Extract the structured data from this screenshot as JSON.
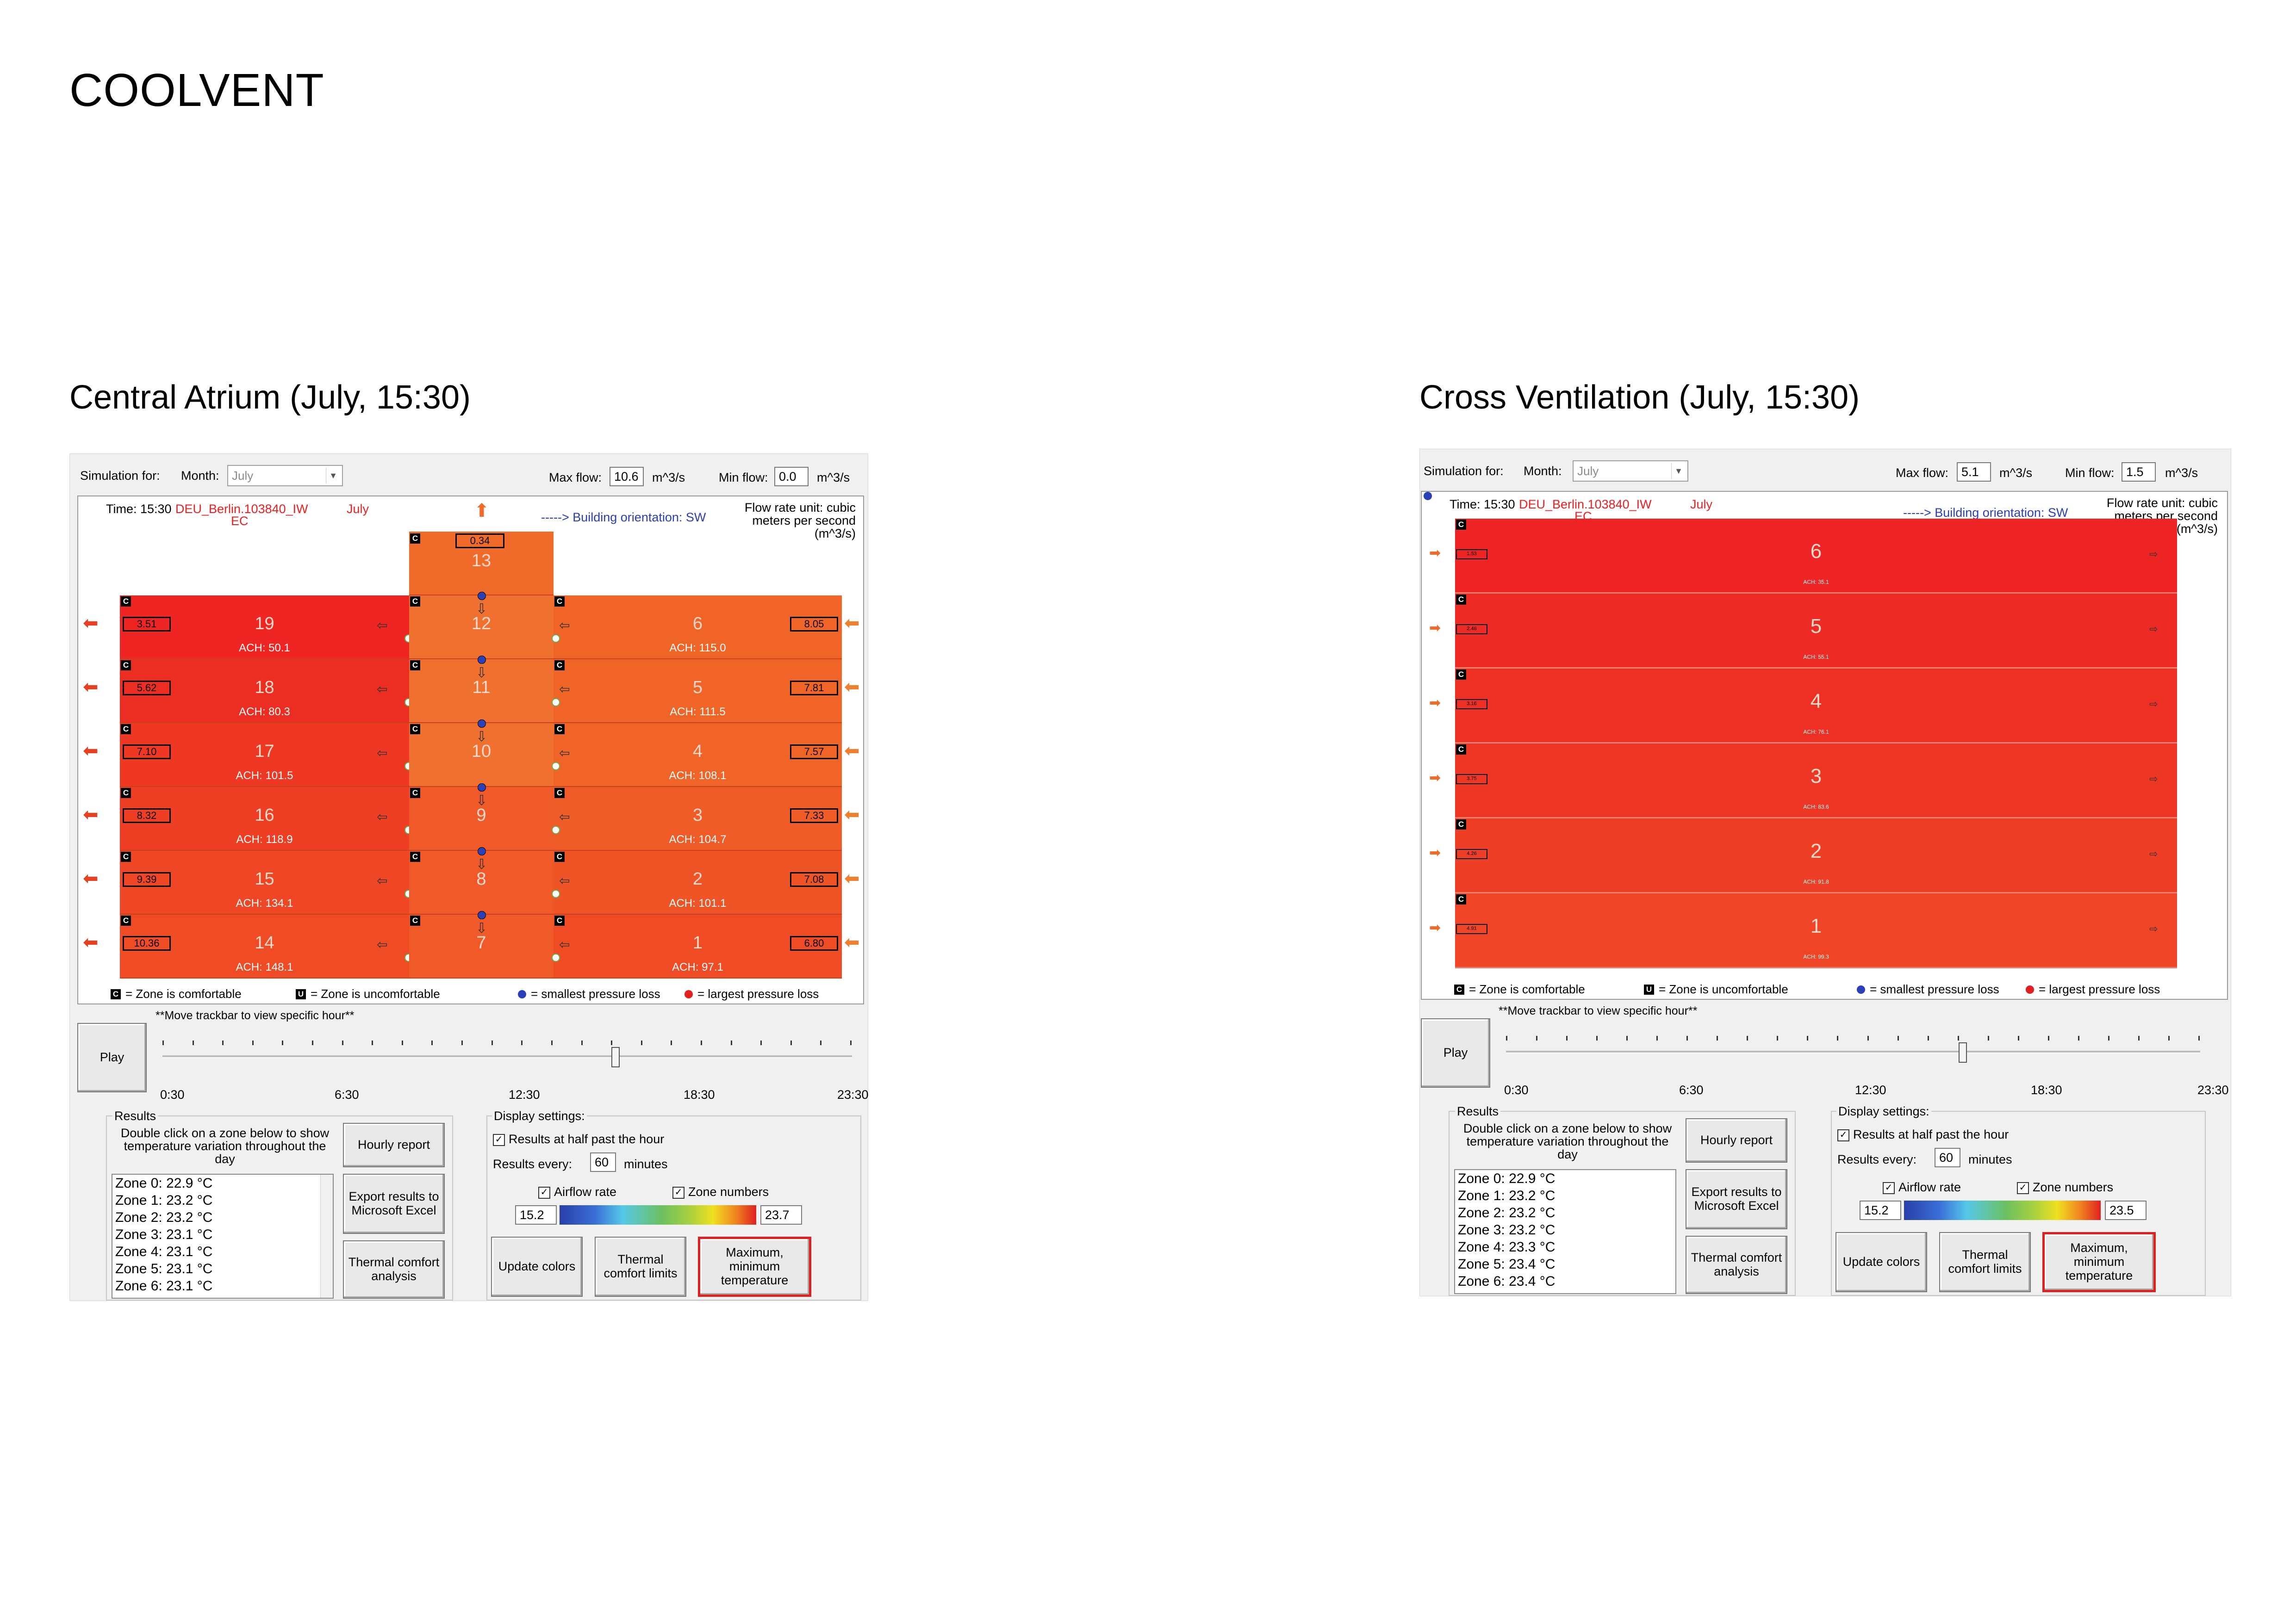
{
  "page": {
    "title": "COOLVENT"
  },
  "common": {
    "simulation_for": "Simulation for:",
    "month_label": "Month:",
    "month_value": "July",
    "max_flow_label": "Max flow:",
    "min_flow_label": "Min flow:",
    "flow_unit": "m^3/s",
    "time_label": "Time: 15:30",
    "location": "DEU_Berlin.103840_IW",
    "location_suffix": "EC",
    "month_display": "July",
    "orientation": "-----> Building orientation: SW",
    "flow_unit_note": "Flow rate unit: cubic meters per second (m^3/s)",
    "legend_c": "= Zone is comfortable",
    "legend_u": "= Zone is uncomfortable",
    "legend_small": "= smallest pressure loss",
    "legend_large": "= largest pressure loss",
    "trackbar_hint": "**Move trackbar to view specific hour**",
    "play": "Play",
    "time_ticks": [
      "0:30",
      "6:30",
      "12:30",
      "18:30",
      "23:30"
    ],
    "results_group": "Results",
    "results_hint": "Double click on a zone below to show temperature variation throughout the day",
    "hourly_report": "Hourly report",
    "export_excel": "Export results to Microsoft Excel",
    "thermal_comfort_analysis": "Thermal comfort analysis",
    "display_settings": "Display settings:",
    "half_past": "Results at half past the hour",
    "results_every": "Results every:",
    "results_every_value": "60",
    "minutes": "minutes",
    "airflow_rate": "Airflow rate",
    "zone_numbers": "Zone numbers",
    "update_colors": "Update colors",
    "thermal_comfort_limits": "Thermal comfort limits",
    "max_min_temp": "Maximum, minimum temperature",
    "c_mark": "C",
    "u_mark": "U"
  },
  "colors": {
    "zone_red": "#ee2222",
    "zone_orange": "#ef5a26",
    "atrium": "#f06a2a",
    "accent_red": "#e02020",
    "accent_blue": "#2a3fb8"
  },
  "left": {
    "title": "Central Atrium (July, 15:30)",
    "max_flow": "10.6",
    "min_flow": "0.0",
    "atrium_top": {
      "num": "13",
      "flow": "0.34"
    },
    "atrium": [
      "12",
      "11",
      "10",
      "9",
      "8",
      "7"
    ],
    "west": [
      {
        "num": "19",
        "ach": "ACH: 50.1",
        "flow": "3.51"
      },
      {
        "num": "18",
        "ach": "ACH: 80.3",
        "flow": "5.62"
      },
      {
        "num": "17",
        "ach": "ACH: 101.5",
        "flow": "7.10"
      },
      {
        "num": "16",
        "ach": "ACH: 118.9",
        "flow": "8.32"
      },
      {
        "num": "15",
        "ach": "ACH: 134.1",
        "flow": "9.39"
      },
      {
        "num": "14",
        "ach": "ACH: 148.1",
        "flow": "10.36"
      }
    ],
    "east": [
      {
        "num": "6",
        "ach": "ACH: 115.0",
        "flow": "8.05"
      },
      {
        "num": "5",
        "ach": "ACH: 111.5",
        "flow": "7.81"
      },
      {
        "num": "4",
        "ach": "ACH: 108.1",
        "flow": "7.57"
      },
      {
        "num": "3",
        "ach": "ACH: 104.7",
        "flow": "7.33"
      },
      {
        "num": "2",
        "ach": "ACH: 101.1",
        "flow": "7.08"
      },
      {
        "num": "1",
        "ach": "ACH: 97.1",
        "flow": "6.80"
      }
    ],
    "results": [
      "Zone 0: 22.9 °C",
      "Zone 1: 23.2 °C",
      "Zone 2: 23.2 °C",
      "Zone 3: 23.1 °C",
      "Zone 4: 23.1 °C",
      "Zone 5: 23.1 °C",
      "Zone 6: 23.1 °C"
    ],
    "scale_min": "15.2",
    "scale_max": "23.7"
  },
  "right": {
    "title": "Cross Ventilation (July, 15:30)",
    "max_flow": "5.1",
    "min_flow": "1.5",
    "zones": [
      {
        "num": "6",
        "ach": "ACH: 35.1",
        "flow": "1.53"
      },
      {
        "num": "5",
        "ach": "ACH: 55.1",
        "flow": "2.46"
      },
      {
        "num": "4",
        "ach": "ACH: 76.1",
        "flow": "3.16"
      },
      {
        "num": "3",
        "ach": "ACH: 83.6",
        "flow": "3.75"
      },
      {
        "num": "2",
        "ach": "ACH: 91.8",
        "flow": "4.26"
      },
      {
        "num": "1",
        "ach": "ACH: 99.3",
        "flow": "4.91"
      }
    ],
    "results": [
      "Zone 0: 22.9 °C",
      "Zone 1: 23.2 °C",
      "Zone 2: 23.2 °C",
      "Zone 3: 23.2 °C",
      "Zone 4: 23.3 °C",
      "Zone 5: 23.4 °C",
      "Zone 6: 23.4 °C"
    ],
    "scale_min": "15.2",
    "scale_max": "23.5"
  }
}
